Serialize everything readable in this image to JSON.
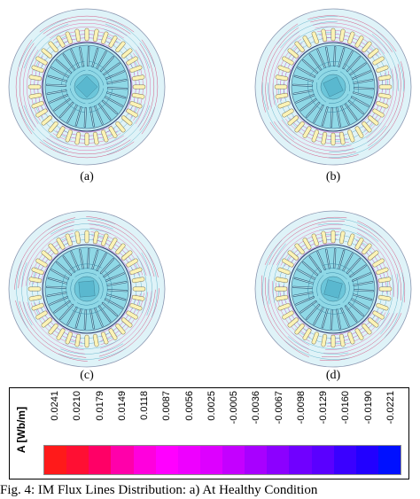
{
  "subfigures": [
    {
      "label": "(a)"
    },
    {
      "label": "(b)"
    },
    {
      "label": "(c)"
    },
    {
      "label": "(d)"
    }
  ],
  "legend": {
    "title": "A [Wb/m]",
    "values": [
      "0.0241",
      "0.0210",
      "0.0179",
      "0.0149",
      "0.0118",
      "0.0087",
      "0.0056",
      "0.0025",
      "-0.0005",
      "-0.0036",
      "-0.0067",
      "-0.0098",
      "-0.0129",
      "-0.0160",
      "-0.0190",
      "-0.0221"
    ],
    "colors": [
      "#ff1a1a",
      "#ff0f33",
      "#ff0066",
      "#ff00aa",
      "#ff00dd",
      "#ff00ff",
      "#ee00ff",
      "#dd00ff",
      "#c400ff",
      "#a800ff",
      "#8c00ff",
      "#7000ff",
      "#5a00ff",
      "#3a00ff",
      "#2200ff",
      "#0010ff"
    ]
  },
  "caption": "Fig. 4: IM Flux Lines Distribution: a) At Healthy Condition"
}
